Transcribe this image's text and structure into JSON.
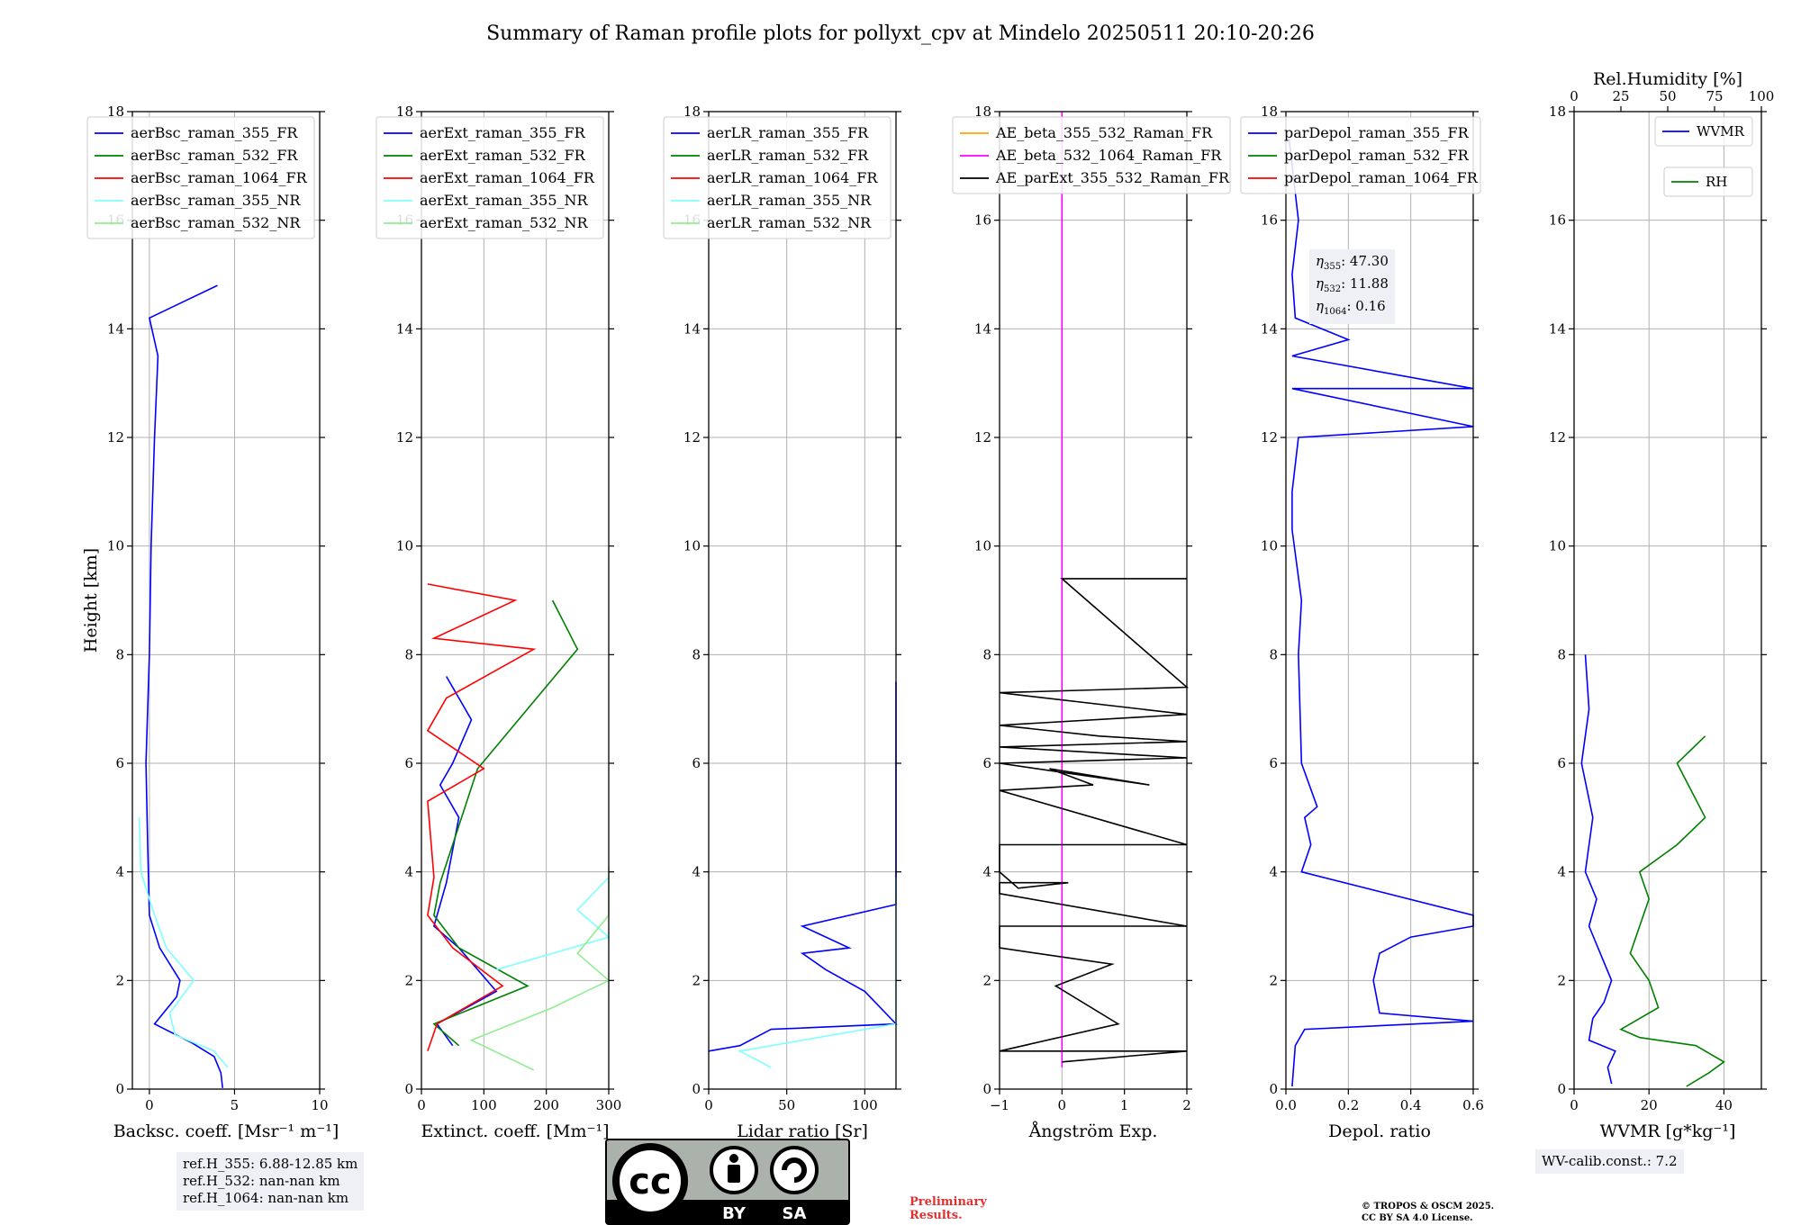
{
  "figure": {
    "title": "Summary of Raman profile plots for pollyxt_cpv at Mindelo 20250511 20:10-20:26"
  },
  "colors": {
    "blue": "#0000ff",
    "green": "#008000",
    "red": "#ff0000",
    "cyan": "#7fffff",
    "lightgreen": "#90ee90",
    "orange": "#ffa500",
    "magenta": "#ff00ff",
    "black": "#000000",
    "grid": "#b0b0b0"
  },
  "chart_data": [
    {
      "type": "line",
      "ylabel": "Height [km]",
      "xlabel": "Backsc. coeff. [Msr⁻¹ m⁻¹]",
      "xlim": [
        -1,
        10
      ],
      "ylim": [
        0,
        18
      ],
      "xticks": [
        0,
        5,
        10
      ],
      "yticks": [
        0,
        2,
        4,
        6,
        8,
        10,
        12,
        14,
        16,
        18
      ],
      "grid": true,
      "legend_placement": "top-left",
      "series": [
        {
          "name": "aerBsc_raman_355_FR",
          "color": "blue",
          "points": [
            [
              4.3,
              0.02
            ],
            [
              4.2,
              0.3
            ],
            [
              3.8,
              0.6
            ],
            [
              2.5,
              0.85
            ],
            [
              0.3,
              1.2
            ],
            [
              1.6,
              1.7
            ],
            [
              1.8,
              2.0
            ],
            [
              0.6,
              2.6
            ],
            [
              0,
              3.2
            ],
            [
              -0.1,
              4.5
            ],
            [
              -0.2,
              6
            ],
            [
              0,
              8
            ],
            [
              0.1,
              10
            ],
            [
              0.3,
              12
            ],
            [
              0.5,
              13.5
            ],
            [
              0,
              14.2
            ],
            [
              2,
              14.5
            ],
            [
              4,
              14.8
            ]
          ]
        },
        {
          "name": "aerBsc_raman_532_FR",
          "color": "green",
          "points": []
        },
        {
          "name": "aerBsc_raman_1064_FR",
          "color": "red",
          "points": []
        },
        {
          "name": "aerBsc_raman_355_NR",
          "color": "cyan",
          "points": [
            [
              4.6,
              0.4
            ],
            [
              3.8,
              0.7
            ],
            [
              1.5,
              1.0
            ],
            [
              1.2,
              1.4
            ],
            [
              2.6,
              2.0
            ],
            [
              1.0,
              2.6
            ],
            [
              0.2,
              3.3
            ],
            [
              -0.5,
              4.0
            ],
            [
              -0.6,
              5.0
            ]
          ]
        },
        {
          "name": "aerBsc_raman_532_NR",
          "color": "lightgreen",
          "points": []
        }
      ]
    },
    {
      "type": "line",
      "xlabel": "Extinct. coeff. [Mm⁻¹]",
      "xlim": [
        0,
        300
      ],
      "ylim": [
        0,
        18
      ],
      "xticks": [
        0,
        100,
        200,
        300
      ],
      "yticks": [
        0,
        2,
        4,
        6,
        8,
        10,
        12,
        14,
        16,
        18
      ],
      "grid": true,
      "legend_placement": "top-left",
      "series": [
        {
          "name": "aerExt_raman_355_FR",
          "color": "blue",
          "points": [
            [
              50,
              0.8
            ],
            [
              25,
              1.2
            ],
            [
              120,
              1.8
            ],
            [
              60,
              2.6
            ],
            [
              20,
              3.0
            ],
            [
              40,
              3.8
            ],
            [
              60,
              5.0
            ],
            [
              30,
              5.6
            ],
            [
              50,
              6.0
            ],
            [
              80,
              6.8
            ],
            [
              40,
              7.6
            ]
          ]
        },
        {
          "name": "aerExt_raman_532_FR",
          "color": "green",
          "points": [
            [
              60,
              0.8
            ],
            [
              20,
              1.2
            ],
            [
              170,
              1.9
            ],
            [
              60,
              2.6
            ],
            [
              20,
              3.2
            ],
            [
              30,
              3.8
            ],
            [
              90,
              5.9
            ],
            [
              250,
              8.1
            ],
            [
              210,
              9.0
            ]
          ]
        },
        {
          "name": "aerExt_raman_1064_FR",
          "color": "red",
          "points": [
            [
              10,
              0.7
            ],
            [
              25,
              1.2
            ],
            [
              130,
              1.9
            ],
            [
              50,
              2.6
            ],
            [
              10,
              3.2
            ],
            [
              20,
              3.9
            ],
            [
              10,
              5.3
            ],
            [
              100,
              5.9
            ],
            [
              10,
              6.6
            ],
            [
              40,
              7.2
            ],
            [
              180,
              8.1
            ],
            [
              20,
              8.3
            ],
            [
              150,
              9.0
            ],
            [
              10,
              9.3
            ]
          ]
        },
        {
          "name": "aerExt_raman_355_NR",
          "color": "cyan",
          "points": [
            [
              120,
              2.2
            ],
            [
              300,
              2.8
            ],
            [
              250,
              3.3
            ],
            [
              300,
              3.9
            ]
          ]
        },
        {
          "name": "aerExt_raman_532_NR",
          "color": "lightgreen",
          "points": [
            [
              180,
              0.35
            ],
            [
              80,
              0.9
            ],
            [
              210,
              1.5
            ],
            [
              300,
              2.0
            ],
            [
              250,
              2.5
            ],
            [
              300,
              3.2
            ],
            [
              300,
              4.1
            ]
          ]
        }
      ]
    },
    {
      "type": "line",
      "xlabel": "Lidar ratio [Sr]",
      "xlim": [
        0,
        120
      ],
      "ylim": [
        0,
        18
      ],
      "xticks": [
        0,
        50,
        100
      ],
      "yticks": [
        0,
        2,
        4,
        6,
        8,
        10,
        12,
        14,
        16,
        18
      ],
      "grid": true,
      "legend_placement": "top-left",
      "series": [
        {
          "name": "aerLR_raman_355_FR",
          "color": "blue",
          "points": [
            [
              0,
              0.7
            ],
            [
              20,
              0.8
            ],
            [
              40,
              1.1
            ],
            [
              120,
              1.2
            ],
            [
              100,
              1.8
            ],
            [
              75,
              2.2
            ],
            [
              60,
              2.5
            ],
            [
              90,
              2.6
            ],
            [
              60,
              3.0
            ],
            [
              120,
              3.4
            ],
            [
              120,
              7.5
            ]
          ]
        },
        {
          "name": "aerLR_raman_532_FR",
          "color": "green",
          "points": []
        },
        {
          "name": "aerLR_raman_1064_FR",
          "color": "red",
          "points": []
        },
        {
          "name": "aerLR_raman_355_NR",
          "color": "cyan",
          "points": [
            [
              40,
              0.4
            ],
            [
              20,
              0.7
            ],
            [
              120,
              1.2
            ],
            [
              120,
              3.9
            ]
          ]
        },
        {
          "name": "aerLR_raman_532_NR",
          "color": "lightgreen",
          "points": []
        }
      ]
    },
    {
      "type": "line",
      "xlabel": "Ångström Exp.",
      "xlim": [
        -1,
        2
      ],
      "ylim": [
        0,
        18
      ],
      "xticks": [
        -1,
        0,
        1,
        2
      ],
      "yticks": [
        0,
        2,
        4,
        6,
        8,
        10,
        12,
        14,
        16,
        18
      ],
      "grid": true,
      "legend_placement": "top",
      "series": [
        {
          "name": "AE_beta_355_532_Raman_FR",
          "color": "orange",
          "points": []
        },
        {
          "name": "AE_beta_532_1064_Raman_FR",
          "color": "magenta",
          "points": [
            [
              0,
              0.4
            ],
            [
              0,
              18
            ]
          ]
        },
        {
          "name": "AE_parExt_355_532_Raman_FR",
          "color": "black",
          "points": [
            [
              0,
              0.5
            ],
            [
              2,
              0.7
            ],
            [
              -1,
              0.7
            ],
            [
              0.9,
              1.2
            ],
            [
              -0.1,
              1.9
            ],
            [
              0.8,
              2.3
            ],
            [
              -1,
              2.6
            ],
            [
              -1,
              3.0
            ],
            [
              2,
              3.0
            ],
            [
              -1,
              3.6
            ],
            [
              -1,
              3.8
            ],
            [
              0.1,
              3.8
            ],
            [
              -0.7,
              3.7
            ],
            [
              -1,
              4.0
            ],
            [
              -1,
              4.5
            ],
            [
              2,
              4.5
            ],
            [
              -1,
              5.5
            ],
            [
              0.5,
              5.6
            ],
            [
              -0.2,
              5.9
            ],
            [
              1.4,
              5.6
            ],
            [
              -1,
              6.0
            ],
            [
              2,
              6.1
            ],
            [
              -1,
              6.3
            ],
            [
              2,
              6.4
            ],
            [
              0.6,
              6.5
            ],
            [
              -1,
              6.7
            ],
            [
              2,
              6.9
            ],
            [
              -1,
              7.3
            ],
            [
              2,
              7.4
            ],
            [
              0,
              9.4
            ],
            [
              2,
              9.4
            ]
          ]
        }
      ]
    },
    {
      "type": "line",
      "xlabel": "Depol. ratio",
      "xlim": [
        0,
        0.6
      ],
      "ylim": [
        0,
        18
      ],
      "xticks": [
        0.0,
        0.2,
        0.4,
        0.6
      ],
      "tick_labels": [
        "0.0",
        "0.2",
        "0.4",
        "0.6"
      ],
      "yticks": [
        0,
        2,
        4,
        6,
        8,
        10,
        12,
        14,
        16,
        18
      ],
      "grid": true,
      "legend_placement": "top-left",
      "series": [
        {
          "name": "parDepol_raman_355_FR",
          "color": "blue",
          "points": [
            [
              0.02,
              0.05
            ],
            [
              0.03,
              0.8
            ],
            [
              0.06,
              1.1
            ],
            [
              0.6,
              1.25
            ],
            [
              0.3,
              1.4
            ],
            [
              0.28,
              2.0
            ],
            [
              0.3,
              2.5
            ],
            [
              0.4,
              2.8
            ],
            [
              0.6,
              3.0
            ],
            [
              0.6,
              3.2
            ],
            [
              0.05,
              4.0
            ],
            [
              0.08,
              4.5
            ],
            [
              0.06,
              5.0
            ],
            [
              0.1,
              5.2
            ],
            [
              0.05,
              6.0
            ],
            [
              0.04,
              8.0
            ],
            [
              0.05,
              9.0
            ],
            [
              0.02,
              10.3
            ],
            [
              0.02,
              11.0
            ],
            [
              0.04,
              12.0
            ],
            [
              0.6,
              12.2
            ],
            [
              0.02,
              12.9
            ],
            [
              0.6,
              12.9
            ],
            [
              0.02,
              13.5
            ],
            [
              0.2,
              13.8
            ],
            [
              0.03,
              14.2
            ],
            [
              0.02,
              15.0
            ],
            [
              0.04,
              16.0
            ],
            [
              0.01,
              17.5
            ]
          ]
        },
        {
          "name": "parDepol_raman_532_FR",
          "color": "green",
          "points": []
        },
        {
          "name": "parDepol_raman_1064_FR",
          "color": "red",
          "points": []
        }
      ]
    },
    {
      "type": "line",
      "xlabel": "WVMR [g*kg⁻¹]",
      "xlim": [
        0,
        50
      ],
      "ylim": [
        0,
        18
      ],
      "xticks": [
        0,
        20,
        40
      ],
      "yticks": [
        0,
        2,
        4,
        6,
        8,
        10,
        12,
        14,
        16,
        18
      ],
      "grid": true,
      "top_axis": {
        "label": "Rel.Humidity [%]",
        "range": [
          0,
          100
        ],
        "ticks": [
          0,
          25,
          50,
          75,
          100
        ]
      },
      "legend_placement": "top-right",
      "series": [
        {
          "name": "WVMR",
          "color": "blue",
          "points": [
            [
              10,
              0.1
            ],
            [
              9,
              0.4
            ],
            [
              11,
              0.7
            ],
            [
              4,
              0.9
            ],
            [
              5,
              1.3
            ],
            [
              8,
              1.6
            ],
            [
              10,
              2.0
            ],
            [
              7,
              2.5
            ],
            [
              4,
              3.0
            ],
            [
              6,
              3.5
            ],
            [
              3,
              4.0
            ],
            [
              5,
              5.0
            ],
            [
              2,
              6.0
            ],
            [
              4,
              7.0
            ],
            [
              3,
              8.0
            ]
          ]
        },
        {
          "name": "RH",
          "color": "green",
          "axis": "top",
          "points": [
            [
              60,
              0.05
            ],
            [
              72,
              0.3
            ],
            [
              80,
              0.5
            ],
            [
              65,
              0.8
            ],
            [
              35,
              0.95
            ],
            [
              25,
              1.1
            ],
            [
              45,
              1.5
            ],
            [
              40,
              2.0
            ],
            [
              30,
              2.5
            ],
            [
              35,
              3.0
            ],
            [
              40,
              3.5
            ],
            [
              35,
              4.0
            ],
            [
              55,
              4.5
            ],
            [
              70,
              5.0
            ],
            [
              55,
              6.0
            ],
            [
              70,
              6.5
            ]
          ]
        }
      ]
    }
  ],
  "annotations": {
    "ref_heights": [
      "ref.H_355: 6.88-12.85 km",
      "ref.H_532: nan-nan km",
      "ref.H_1064: nan-nan km"
    ],
    "eta_values": [
      {
        "label": "η",
        "sub": "355",
        "value": ": 47.30"
      },
      {
        "label": "η",
        "sub": "532",
        "value": ": 11.88"
      },
      {
        "label": "η",
        "sub": "1064",
        "value": ": 0.16"
      }
    ],
    "wv_calib": "WV-calib.const.: 7.2",
    "preliminary": [
      "Preliminary",
      "Results."
    ],
    "copyright": [
      "© TROPOS & OSCM 2025.",
      "CC BY SA 4.0 License."
    ]
  },
  "license_badge": {
    "top_text": "cc",
    "bottom_labels": [
      "BY",
      "SA"
    ]
  }
}
